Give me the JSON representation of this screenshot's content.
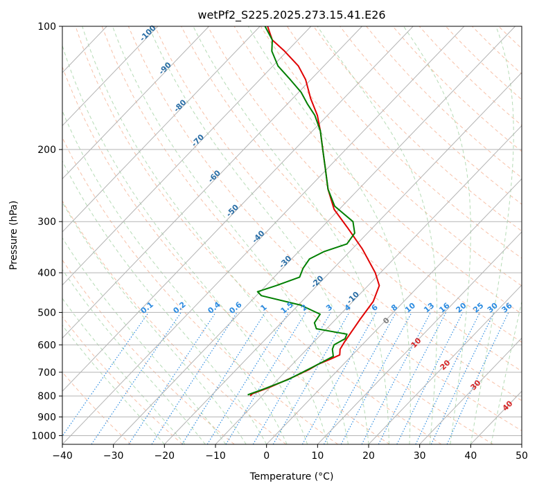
{
  "chart_data": {
    "type": "line",
    "title": "wetPf2_S225.2025.273.15.41.E26",
    "xlabel": "Temperature (°C)",
    "ylabel": "Pressure (hPa)",
    "xlim": [
      -40,
      50
    ],
    "ylim": [
      1050,
      100
    ],
    "y_scale": "log",
    "grid": true,
    "x_ticks": [
      -40,
      -30,
      -20,
      -10,
      0,
      10,
      20,
      30,
      40,
      50
    ],
    "y_ticks": [
      100,
      200,
      300,
      400,
      500,
      600,
      700,
      800,
      900,
      1000
    ],
    "skew": true,
    "series": [
      {
        "color": "#e00000",
        "points": [
          [
            -12.3,
            800
          ],
          [
            -12.3,
            790
          ],
          [
            -10.0,
            760
          ],
          [
            -7.5,
            720
          ],
          [
            -5.8,
            690
          ],
          [
            -5.0,
            670
          ],
          [
            -3.5,
            650
          ],
          [
            -2.5,
            635
          ],
          [
            -3.5,
            615
          ],
          [
            -4.0,
            590
          ],
          [
            -4.5,
            560
          ],
          [
            -5.2,
            520
          ],
          [
            -6.0,
            470
          ],
          [
            -7.8,
            430
          ],
          [
            -11.0,
            400
          ],
          [
            -18.0,
            350
          ],
          [
            -25.0,
            310
          ],
          [
            -31.0,
            280
          ],
          [
            -36.0,
            250
          ],
          [
            -40.0,
            225
          ],
          [
            -44.5,
            200
          ],
          [
            -48.5,
            180
          ],
          [
            -52.0,
            165
          ],
          [
            -56.5,
            150
          ],
          [
            -61.0,
            135
          ],
          [
            -65.0,
            125
          ],
          [
            -70.5,
            115
          ],
          [
            -75.0,
            108
          ],
          [
            -78.5,
            100
          ]
        ]
      },
      {
        "color": "#007f00",
        "points": [
          [
            -13.0,
            795
          ],
          [
            -11.0,
            770
          ],
          [
            -8.0,
            730
          ],
          [
            -6.5,
            700
          ],
          [
            -5.5,
            680
          ],
          [
            -4.5,
            660
          ],
          [
            -3.5,
            640
          ],
          [
            -5.0,
            615
          ],
          [
            -5.5,
            600
          ],
          [
            -4.5,
            580
          ],
          [
            -5.0,
            565
          ],
          [
            -12.0,
            548
          ],
          [
            -13.5,
            530
          ],
          [
            -14.0,
            505
          ],
          [
            -19.5,
            480
          ],
          [
            -29.0,
            455
          ],
          [
            -30.5,
            445
          ],
          [
            -28.0,
            430
          ],
          [
            -25.0,
            410
          ],
          [
            -26.0,
            390
          ],
          [
            -26.5,
            370
          ],
          [
            -25.0,
            355
          ],
          [
            -22.0,
            340
          ],
          [
            -22.5,
            320
          ],
          [
            -25.0,
            300
          ],
          [
            -31.5,
            275
          ],
          [
            -36.0,
            250
          ],
          [
            -40.0,
            225
          ],
          [
            -44.5,
            200
          ],
          [
            -48.5,
            180
          ],
          [
            -52.5,
            165
          ],
          [
            -56.0,
            155
          ],
          [
            -59.5,
            145
          ],
          [
            -64.0,
            135
          ],
          [
            -69.0,
            125
          ],
          [
            -73.0,
            115
          ],
          [
            -75.0,
            108
          ],
          [
            -79.0,
            100
          ]
        ]
      }
    ],
    "isotherm_labels": [
      "-100",
      "-90",
      "-80",
      "-70",
      "-60",
      "-50",
      "-40",
      "-30",
      "-20",
      "-10"
    ],
    "mixing_ratio_labels": [
      "0.1",
      "0.2",
      "0.4",
      "0.6",
      "1",
      "1.5",
      "2",
      "3",
      "4",
      "6",
      "8",
      "10",
      "13",
      "16",
      "20",
      "25",
      "30",
      "36"
    ],
    "dry_adiabat_labels": [
      "0",
      "10",
      "20",
      "30",
      "40"
    ],
    "colors": {
      "temperature": "#e00000",
      "dewpoint": "#007f00",
      "isotherm": "#2a6ea6",
      "mixing_ratio": "#2b8be0",
      "dry_adiabat": "#d62728",
      "dry_adiabat_zero": "#7f7f7f",
      "dry_adiabat_lines": "#f4a582",
      "moist_adiabat_lines": "#9ccf9c",
      "skewed_grid": "#b3b3b3"
    }
  }
}
